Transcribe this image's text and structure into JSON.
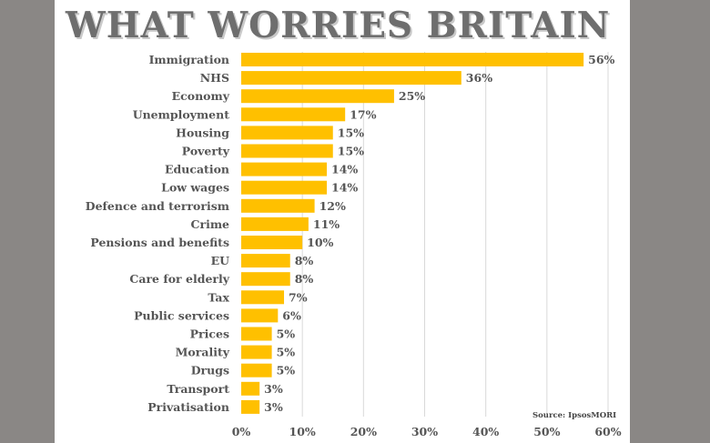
{
  "chart_data": {
    "type": "bar",
    "orientation": "horizontal",
    "title": "WHAT WORRIES BRITAIN",
    "source": "Source: IpsosMORI",
    "categories": [
      "Immigration",
      "NHS",
      "Economy",
      "Unemployment",
      "Housing",
      "Poverty",
      "Education",
      "Low wages",
      "Defence and terrorism",
      "Crime",
      "Pensions and benefits",
      "EU",
      "Care for elderly",
      "Tax",
      "Public services",
      "Prices",
      "Morality",
      "Drugs",
      "Transport",
      "Privatisation"
    ],
    "values": [
      56,
      36,
      25,
      17,
      15,
      15,
      14,
      14,
      12,
      11,
      10,
      8,
      8,
      7,
      6,
      5,
      5,
      5,
      3,
      3
    ],
    "value_labels": [
      "56%",
      "36%",
      "25%",
      "17%",
      "15%",
      "15%",
      "14%",
      "14%",
      "12%",
      "11%",
      "10%",
      "8%",
      "8%",
      "7%",
      "6%",
      "5%",
      "5%",
      "5%",
      "3%",
      "3%"
    ],
    "xlim": [
      0,
      60
    ],
    "xticks": [
      0,
      10,
      20,
      30,
      40,
      50,
      60
    ],
    "xtick_labels": [
      "0%",
      "10%",
      "20%",
      "30%",
      "40%",
      "50%",
      "60%"
    ],
    "grid": "vertical",
    "legend": "none",
    "bar_color": "#ffc000",
    "grid_color": "#d9d9d9"
  }
}
